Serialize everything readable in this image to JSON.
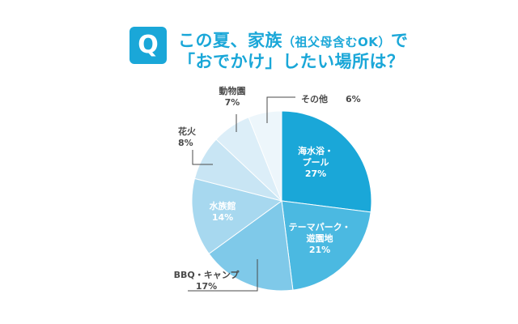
{
  "question": {
    "badge": "Q",
    "line1_main": "この夏、家族",
    "line1_paren": "（祖父母含むOK）",
    "line1_end": "で",
    "line2": "「おでかけ」したい場所は？"
  },
  "colors": {
    "accent": "#1aa7d8",
    "slices": [
      "#1aa7d8",
      "#4bb9e1",
      "#7fc9e9",
      "#a7d8ef",
      "#c8e5f4",
      "#dceef8",
      "#edf6fb"
    ],
    "leader": "#4a4a4a"
  },
  "chart_data": {
    "type": "pie",
    "start_angle_deg": 0,
    "direction": "clockwise",
    "slices": [
      {
        "label_lines": [
          "海水浴・",
          "プール"
        ],
        "value": 27,
        "value_text": "27%",
        "label_inside": true
      },
      {
        "label_lines": [
          "テーマパーク・",
          "遊園地"
        ],
        "value": 21,
        "value_text": "21%",
        "label_inside": true
      },
      {
        "label_lines": [
          "BBQ・キャンプ"
        ],
        "value": 17,
        "value_text": "17%",
        "label_inside": false
      },
      {
        "label_lines": [
          "水族館"
        ],
        "value": 14,
        "value_text": "14%",
        "label_inside": true
      },
      {
        "label_lines": [
          "花火"
        ],
        "value": 8,
        "value_text": "8%",
        "label_inside": false
      },
      {
        "label_lines": [
          "動物園"
        ],
        "value": 7,
        "value_text": "7%",
        "label_inside": false
      },
      {
        "label_lines": [
          "その他"
        ],
        "value": 6,
        "value_text": "6%",
        "label_inside": false
      }
    ]
  }
}
